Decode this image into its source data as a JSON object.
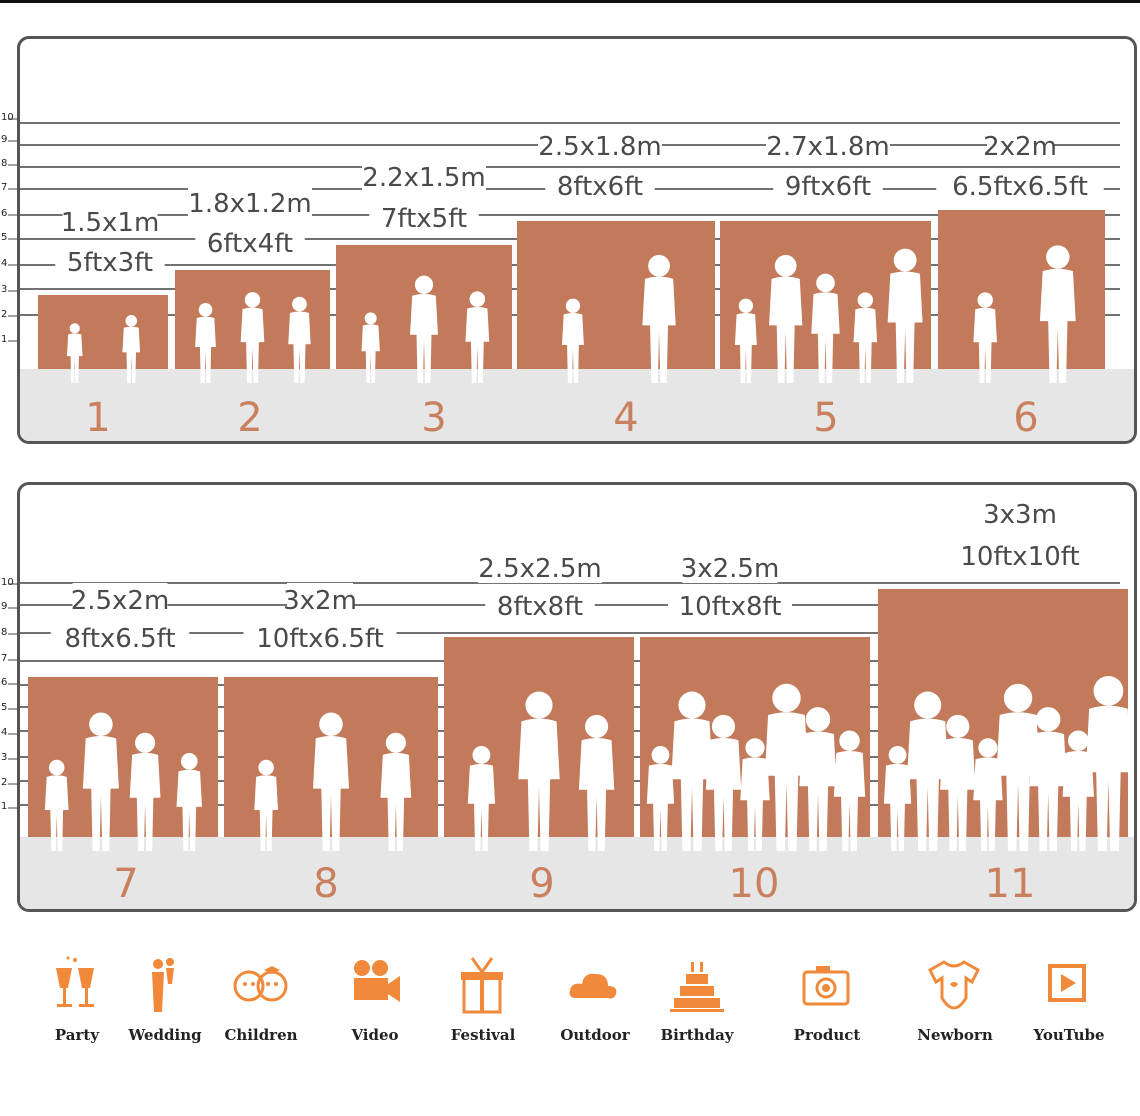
{
  "colors": {
    "backdrop": "#c27a5a",
    "floor": "#e6e6e6",
    "accent": "#f08a3a",
    "number": "#c9805e"
  },
  "scale_ticks": [
    "1",
    "2",
    "3",
    "4",
    "5",
    "6",
    "7",
    "8",
    "9",
    "10"
  ],
  "panels": [
    {
      "items": [
        {
          "number": "1",
          "metric": "1.5x1m",
          "imperial": "5ftx3ft",
          "scene": "children-reading-silhouette"
        },
        {
          "number": "2",
          "metric": "1.8x1.2m",
          "imperial": "6ftx4ft",
          "scene": "children-running-silhouette"
        },
        {
          "number": "3",
          "metric": "2.2x1.5m",
          "imperial": "7ftx5ft",
          "scene": "family-walking-silhouette"
        },
        {
          "number": "4",
          "metric": "2.5x1.8m",
          "imperial": "8ftx6ft",
          "scene": "wedding-couple-silhouette"
        },
        {
          "number": "5",
          "metric": "2.7x1.8m",
          "imperial": "9ftx6ft",
          "scene": "girls-group-silhouette"
        },
        {
          "number": "6",
          "metric": "2x2m",
          "imperial": "6.5ftx6.5ft",
          "scene": "couple-with-dogs-silhouette"
        }
      ]
    },
    {
      "items": [
        {
          "number": "7",
          "metric": "2.5x2m",
          "imperial": "8ftx6.5ft",
          "scene": "family-with-kids-silhouette"
        },
        {
          "number": "8",
          "metric": "3x2m",
          "imperial": "10ftx6.5ft",
          "scene": "family-lifting-child-silhouette"
        },
        {
          "number": "9",
          "metric": "2.5x2.5m",
          "imperial": "8ftx8ft",
          "scene": "three-people-silhouette"
        },
        {
          "number": "10",
          "metric": "3x2.5m",
          "imperial": "10ftx8ft",
          "scene": "friends-group-silhouette"
        },
        {
          "number": "11",
          "metric": "3x3m",
          "imperial": "10ftx10ft",
          "scene": "graduation-group-silhouette"
        }
      ]
    }
  ],
  "uses": [
    {
      "label": "Party",
      "icon": "cheers-glasses-icon"
    },
    {
      "label": "Wedding",
      "icon": "wedding-couple-icon"
    },
    {
      "label": "Children",
      "icon": "children-faces-icon"
    },
    {
      "label": "Video",
      "icon": "video-camera-icon"
    },
    {
      "label": "Festival",
      "icon": "gift-box-icon"
    },
    {
      "label": "Outdoor",
      "icon": "cloud-icon"
    },
    {
      "label": "Birthday",
      "icon": "birthday-cake-icon"
    },
    {
      "label": "Product",
      "icon": "camera-icon"
    },
    {
      "label": "Newborn",
      "icon": "baby-onesie-icon"
    },
    {
      "label": "YouTube",
      "icon": "play-button-icon"
    }
  ]
}
